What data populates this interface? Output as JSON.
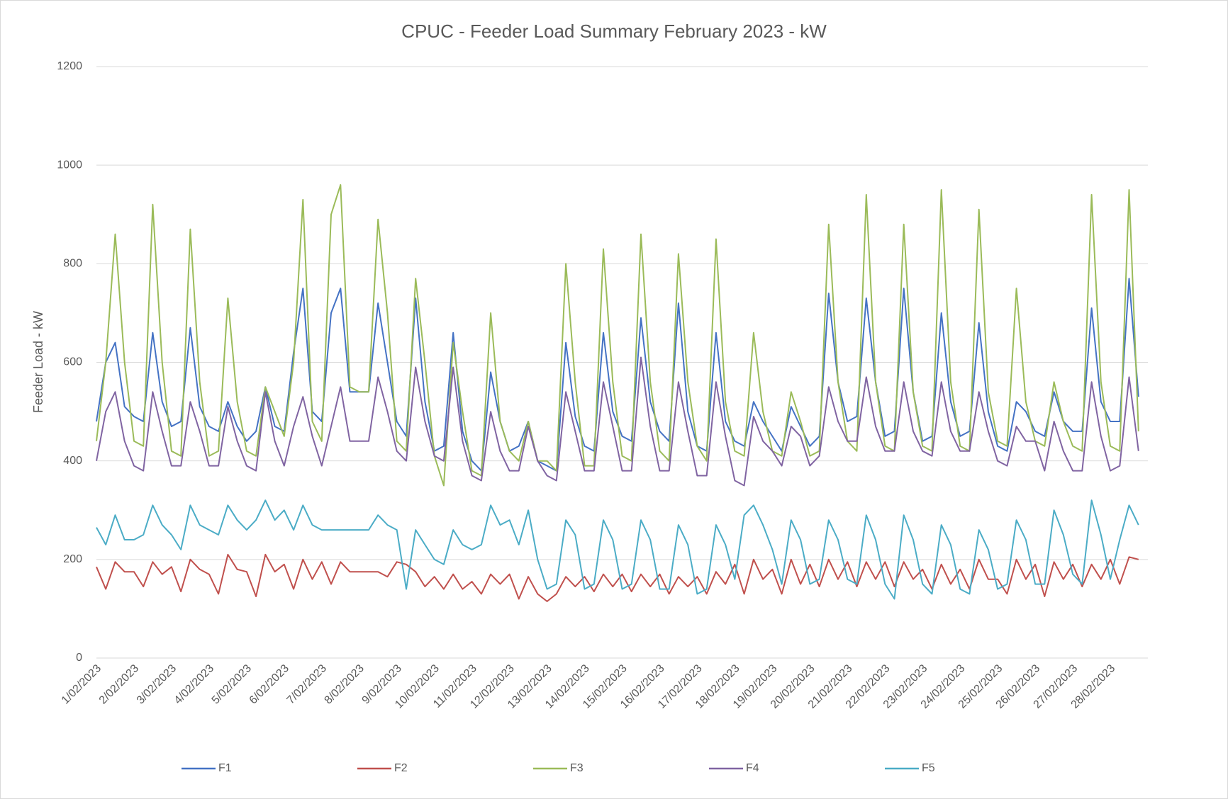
{
  "chart_data": {
    "type": "line",
    "title": "CPUC - Feeder Load Summary February 2023 - kW",
    "y_label": "Feeder Load - kW",
    "ylim": [
      0,
      1200
    ],
    "yticks": [
      0,
      200,
      400,
      600,
      800,
      1000,
      1200
    ],
    "grid": true,
    "legend": "bottom",
    "categories": [
      "1/02/2023",
      null,
      null,
      null,
      "2/02/2023",
      null,
      null,
      null,
      "3/02/2023",
      null,
      null,
      null,
      "4/02/2023",
      null,
      null,
      null,
      "5/02/2023",
      null,
      null,
      null,
      "6/02/2023",
      null,
      null,
      null,
      "7/02/2023",
      null,
      null,
      null,
      "8/02/2023",
      null,
      null,
      null,
      "9/02/2023",
      null,
      null,
      null,
      "10/02/2023",
      null,
      null,
      null,
      "11/02/2023",
      null,
      null,
      null,
      "12/02/2023",
      null,
      null,
      null,
      "13/02/2023",
      null,
      null,
      null,
      "14/02/2023",
      null,
      null,
      null,
      "15/02/2023",
      null,
      null,
      null,
      "16/02/2023",
      null,
      null,
      null,
      "17/02/2023",
      null,
      null,
      null,
      "18/02/2023",
      null,
      null,
      null,
      "19/02/2023",
      null,
      null,
      null,
      "20/02/2023",
      null,
      null,
      null,
      "21/02/2023",
      null,
      null,
      null,
      "22/02/2023",
      null,
      null,
      null,
      "23/02/2023",
      null,
      null,
      null,
      "24/02/2023",
      null,
      null,
      null,
      "25/02/2023",
      null,
      null,
      null,
      "26/02/2023",
      null,
      null,
      null,
      "27/02/2023",
      null,
      null,
      null,
      "28/02/2023",
      null,
      null,
      null
    ],
    "series": [
      {
        "name": "F1",
        "color": "#4472c4",
        "values": [
          480,
          600,
          640,
          510,
          490,
          480,
          660,
          520,
          470,
          480,
          670,
          510,
          470,
          460,
          520,
          470,
          440,
          460,
          550,
          470,
          460,
          620,
          750,
          500,
          480,
          700,
          750,
          540,
          540,
          540,
          720,
          600,
          480,
          450,
          730,
          520,
          420,
          430,
          660,
          460,
          400,
          380,
          580,
          480,
          420,
          430,
          480,
          400,
          390,
          380,
          640,
          490,
          430,
          420,
          660,
          500,
          450,
          440,
          690,
          520,
          460,
          440,
          720,
          500,
          430,
          420,
          660,
          480,
          440,
          430,
          520,
          480,
          450,
          420,
          510,
          470,
          430,
          450,
          740,
          560,
          480,
          490,
          730,
          560,
          450,
          460,
          750,
          540,
          440,
          450,
          700,
          520,
          450,
          460,
          680,
          500,
          430,
          420,
          520,
          500,
          460,
          450,
          540,
          480,
          460,
          460,
          710,
          520,
          480,
          480,
          770,
          530
        ]
      },
      {
        "name": "F2",
        "color": "#c0504d",
        "values": [
          185,
          140,
          195,
          175,
          175,
          145,
          195,
          170,
          185,
          135,
          200,
          180,
          170,
          130,
          210,
          180,
          175,
          125,
          210,
          175,
          190,
          140,
          200,
          160,
          195,
          150,
          195,
          175,
          175,
          175,
          175,
          165,
          195,
          190,
          175,
          145,
          165,
          140,
          170,
          140,
          155,
          130,
          170,
          150,
          170,
          120,
          165,
          130,
          115,
          130,
          165,
          145,
          165,
          135,
          170,
          145,
          170,
          135,
          170,
          145,
          170,
          130,
          165,
          145,
          165,
          130,
          175,
          150,
          190,
          130,
          200,
          160,
          180,
          130,
          200,
          150,
          190,
          145,
          200,
          160,
          195,
          145,
          195,
          160,
          195,
          145,
          195,
          160,
          180,
          140,
          190,
          150,
          180,
          140,
          200,
          160,
          160,
          130,
          200,
          160,
          190,
          125,
          195,
          160,
          190,
          145,
          190,
          160,
          200,
          150,
          205,
          200
        ]
      },
      {
        "name": "F3",
        "color": "#9bbb59",
        "values": [
          440,
          600,
          860,
          600,
          440,
          430,
          920,
          600,
          420,
          410,
          870,
          560,
          410,
          420,
          730,
          520,
          420,
          410,
          550,
          500,
          450,
          600,
          930,
          480,
          440,
          900,
          960,
          550,
          540,
          540,
          890,
          700,
          440,
          420,
          770,
          600,
          410,
          350,
          640,
          500,
          380,
          370,
          700,
          480,
          420,
          400,
          480,
          400,
          400,
          380,
          800,
          560,
          390,
          390,
          830,
          560,
          410,
          400,
          860,
          560,
          420,
          400,
          820,
          560,
          430,
          400,
          850,
          520,
          420,
          410,
          660,
          500,
          420,
          410,
          540,
          480,
          410,
          420,
          880,
          560,
          440,
          420,
          940,
          560,
          430,
          420,
          880,
          540,
          430,
          420,
          950,
          560,
          430,
          420,
          910,
          540,
          440,
          430,
          750,
          520,
          440,
          430,
          560,
          480,
          430,
          420,
          940,
          560,
          430,
          420,
          950,
          460
        ]
      },
      {
        "name": "F4",
        "color": "#8064a2",
        "values": [
          400,
          500,
          540,
          440,
          390,
          380,
          540,
          460,
          390,
          390,
          520,
          460,
          390,
          390,
          510,
          440,
          390,
          380,
          540,
          440,
          390,
          470,
          530,
          450,
          390,
          470,
          550,
          440,
          440,
          440,
          570,
          500,
          420,
          400,
          590,
          480,
          410,
          400,
          590,
          440,
          370,
          360,
          500,
          420,
          380,
          380,
          470,
          400,
          370,
          360,
          540,
          460,
          380,
          380,
          560,
          470,
          380,
          380,
          610,
          470,
          380,
          380,
          560,
          460,
          370,
          370,
          560,
          450,
          360,
          350,
          490,
          440,
          420,
          390,
          470,
          450,
          390,
          410,
          550,
          480,
          440,
          440,
          570,
          470,
          420,
          420,
          560,
          460,
          420,
          410,
          560,
          460,
          420,
          420,
          540,
          460,
          400,
          390,
          470,
          440,
          440,
          380,
          480,
          420,
          380,
          380,
          560,
          450,
          380,
          390,
          570,
          420
        ]
      },
      {
        "name": "F5",
        "color": "#4bacc6",
        "values": [
          265,
          230,
          290,
          240,
          240,
          250,
          310,
          270,
          250,
          220,
          310,
          270,
          260,
          250,
          310,
          280,
          260,
          280,
          320,
          280,
          300,
          260,
          310,
          270,
          260,
          260,
          260,
          260,
          260,
          260,
          290,
          270,
          260,
          140,
          260,
          230,
          200,
          190,
          260,
          230,
          220,
          230,
          310,
          270,
          280,
          230,
          300,
          200,
          140,
          150,
          280,
          250,
          140,
          150,
          280,
          240,
          140,
          150,
          280,
          240,
          140,
          140,
          270,
          230,
          130,
          140,
          270,
          230,
          160,
          290,
          310,
          270,
          220,
          150,
          280,
          240,
          150,
          160,
          280,
          240,
          160,
          150,
          290,
          240,
          150,
          120,
          290,
          240,
          150,
          130,
          270,
          230,
          140,
          130,
          260,
          220,
          140,
          150,
          280,
          240,
          150,
          150,
          300,
          250,
          170,
          150,
          320,
          250,
          160,
          240,
          310,
          270
        ]
      }
    ]
  }
}
